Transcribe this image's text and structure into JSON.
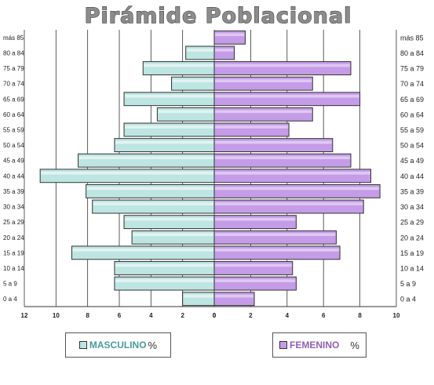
{
  "chart_data": {
    "type": "bar",
    "orientation": "horizontal-population-pyramid",
    "title": "Pirámide Poblacional",
    "categories": [
      "0 a 4",
      "5 a 9",
      "10 a 14",
      "15 a 19",
      "20 a 24",
      "25 a 29",
      "30 a 34",
      "35 a 39",
      "40 a 44",
      "45 a 49",
      "50 a 54",
      "55 a 59",
      "60 a 64",
      "65 a 69",
      "70 a 74",
      "75 a 79",
      "80 a 84",
      "más 85"
    ],
    "series": [
      {
        "name": "MASCULINO",
        "values": [
          2,
          6.3,
          6.3,
          9,
          5.2,
          5.7,
          7.7,
          8.1,
          11,
          8.6,
          6.3,
          5.7,
          3.6,
          5.7,
          2.7,
          4.5,
          1.8,
          0
        ]
      },
      {
        "name": "FEMENINO",
        "values": [
          2.2,
          4.5,
          4.3,
          6.9,
          6.7,
          4.5,
          8.2,
          9.1,
          8.6,
          7.5,
          6.5,
          4.1,
          5.4,
          8,
          5.4,
          7.5,
          1.1,
          1.7
        ]
      }
    ],
    "left_ticks": [
      "12",
      "10",
      "8",
      "6",
      "4",
      "2",
      "0"
    ],
    "right_ticks": [
      "0",
      "2",
      "4",
      "6",
      "8",
      "10"
    ],
    "xlim_left": [
      0,
      12
    ],
    "xlim_right": [
      0,
      10
    ],
    "grid": true,
    "colors": {
      "masculino": "#bde5e2",
      "femenino": "#c59ce8",
      "outline": "#333333"
    }
  },
  "legend": {
    "masculino_label": "MASCULINO",
    "femenino_label": "FEMENINO",
    "pct_label": "%"
  }
}
